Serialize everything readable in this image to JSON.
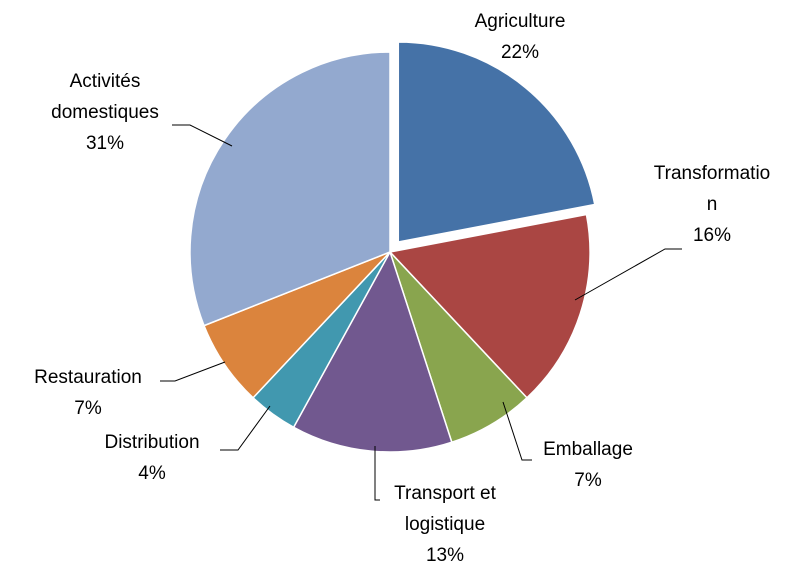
{
  "chart_data": {
    "type": "pie",
    "categories": [
      "Agriculture",
      "Transformation",
      "Emballage",
      "Transport et logistique",
      "Distribution",
      "Restauration",
      "Activités domestiques"
    ],
    "values": [
      22,
      16,
      7,
      13,
      4,
      7,
      31
    ],
    "value_labels": [
      "22%",
      "16%",
      "7%",
      "13%",
      "4%",
      "7%",
      "31%"
    ],
    "colors": [
      "#4572a7",
      "#aa4643",
      "#89a54e",
      "#71588f",
      "#4198af",
      "#db843d",
      "#93a9cf"
    ],
    "exploded": [
      0
    ]
  }
}
